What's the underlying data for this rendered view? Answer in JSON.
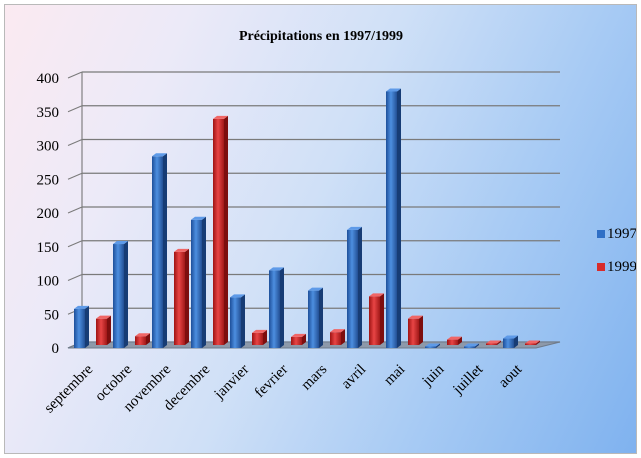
{
  "chart_data": {
    "type": "bar",
    "title": "Précipitations en 1997/1999",
    "categories": [
      "septembre",
      "octobre",
      "novembre",
      "decembre",
      "janvier",
      "fevrier",
      "mars",
      "avril",
      "mai",
      "juin",
      "juillet",
      "aout"
    ],
    "series": [
      {
        "name": "1997",
        "color": "#2f6fc6",
        "values": [
          58,
          154,
          284,
          190,
          75,
          115,
          85,
          175,
          380,
          1,
          1,
          14
        ]
      },
      {
        "name": "1999",
        "color": "#d82b2b",
        "values": [
          39,
          13,
          138,
          335,
          18,
          12,
          19,
          72,
          39,
          8,
          2,
          2
        ]
      }
    ],
    "yticks": [
      "0",
      "50",
      "100",
      "150",
      "200",
      "250",
      "300",
      "350",
      "400"
    ],
    "ylim": [
      0,
      400
    ],
    "grid": true,
    "legend_position": "right"
  }
}
